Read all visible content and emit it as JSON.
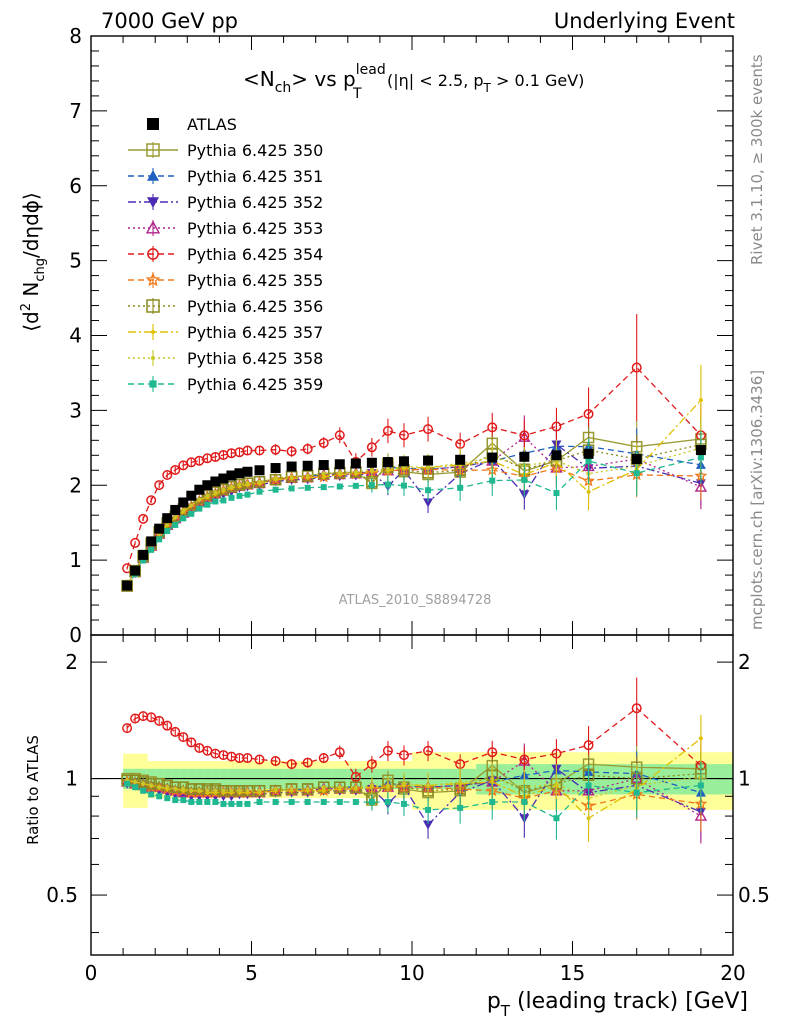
{
  "header": {
    "left": "7000 GeV pp",
    "right": "Underlying Event"
  },
  "title": {
    "main": "<N",
    "ch_sub": "ch",
    "vs": "> vs p",
    "lead_sup": "lead",
    "t_sub": "T",
    "cut": "(|η| < 2.5, p",
    "cut_t_sub": "T",
    "cut_end": " > 0.1 GeV)"
  },
  "ylabel_top": {
    "pre": "⟨d",
    "sup2": "2",
    "mid": " N",
    "sub": "chg",
    "post": "/dηdϕ⟩"
  },
  "ylabel_bottom": "Ratio to ATLAS",
  "xlabel": {
    "p": "p",
    "sub": "T",
    "rest": " (leading track) [GeV]"
  },
  "side_top": "Rivet 3.1.10, ≥ 300k events",
  "side_bottom": "mcplots.cern.ch [arXiv:1306.3436]",
  "watermark": "ATLAS_2010_S8894728",
  "legend": [
    {
      "name": "ATLAS",
      "color": "#000000",
      "marker": "square-filled",
      "dash": "none"
    },
    {
      "name": "Pythia 6.425 350",
      "color": "#9a9a32",
      "marker": "square-open",
      "dash": "solid"
    },
    {
      "name": "Pythia 6.425 351",
      "color": "#1f5fbf",
      "marker": "triangle-up-filled",
      "dash": "dashed"
    },
    {
      "name": "Pythia 6.425 352",
      "color": "#4b2bb3",
      "marker": "triangle-down-filled",
      "dash": "dashdot"
    },
    {
      "name": "Pythia 6.425 353",
      "color": "#b0238a",
      "marker": "triangle-up-open",
      "dash": "dotted"
    },
    {
      "name": "Pythia 6.425 354",
      "color": "#e01a1a",
      "marker": "circle-open",
      "dash": "dashed"
    },
    {
      "name": "Pythia 6.425 355",
      "color": "#f07818",
      "marker": "star-open",
      "dash": "dashed"
    },
    {
      "name": "Pythia 6.425 356",
      "color": "#8a8a20",
      "marker": "square-open",
      "dash": "dotted"
    },
    {
      "name": "Pythia 6.425 357",
      "color": "#e0c000",
      "marker": "dot",
      "dash": "dashdot"
    },
    {
      "name": "Pythia 6.425 358",
      "color": "#c8c828",
      "marker": "dot",
      "dash": "dotted"
    },
    {
      "name": "Pythia 6.425 359",
      "color": "#20b890",
      "marker": "square-filled-small",
      "dash": "dashed"
    }
  ],
  "chart_data": {
    "type": "scatter",
    "xlim": [
      0,
      20
    ],
    "ylim": [
      0,
      8
    ],
    "ratio_ylim": [
      0.35,
      2.35
    ],
    "xticks": [
      0,
      5,
      10,
      15,
      20
    ],
    "yticks": [
      0,
      1,
      2,
      3,
      4,
      5,
      6,
      7,
      8
    ],
    "ratio_yticks": [
      0.5,
      1,
      2
    ],
    "x": [
      1.125,
      1.375,
      1.625,
      1.875,
      2.125,
      2.375,
      2.625,
      2.875,
      3.125,
      3.375,
      3.625,
      3.875,
      4.125,
      4.375,
      4.625,
      4.875,
      5.25,
      5.75,
      6.25,
      6.75,
      7.25,
      7.75,
      8.25,
      8.75,
      9.25,
      9.75,
      10.5,
      11.5,
      12.5,
      13.5,
      14.5,
      15.5,
      17.0,
      19.0
    ],
    "atlas": [
      0.66,
      0.86,
      1.07,
      1.25,
      1.42,
      1.56,
      1.67,
      1.77,
      1.86,
      1.94,
      2.0,
      2.05,
      2.09,
      2.13,
      2.16,
      2.18,
      2.2,
      2.23,
      2.25,
      2.26,
      2.27,
      2.28,
      2.29,
      2.3,
      2.31,
      2.32,
      2.33,
      2.34,
      2.37,
      2.38,
      2.4,
      2.42,
      2.35,
      2.47
    ],
    "series": [
      {
        "name": "Pythia 6.425 350",
        "ratio": [
          1.0,
          1.0,
          0.99,
          0.98,
          0.97,
          0.96,
          0.95,
          0.95,
          0.94,
          0.94,
          0.93,
          0.93,
          0.93,
          0.93,
          0.93,
          0.93,
          0.93,
          0.93,
          0.94,
          0.94,
          0.95,
          0.95,
          0.95,
          0.88,
          0.99,
          0.94,
          0.92,
          0.93,
          1.08,
          0.92,
          0.97,
          1.09,
          1.07,
          1.06
        ]
      },
      {
        "name": "Pythia 6.425 351",
        "ratio": [
          0.98,
          0.98,
          0.97,
          0.96,
          0.95,
          0.94,
          0.93,
          0.93,
          0.92,
          0.92,
          0.92,
          0.92,
          0.92,
          0.92,
          0.92,
          0.93,
          0.93,
          0.93,
          0.93,
          0.94,
          0.94,
          0.95,
          0.95,
          0.94,
          0.97,
          0.96,
          0.95,
          0.96,
          0.98,
          1.02,
          1.05,
          1.04,
          1.03,
          0.92
        ]
      },
      {
        "name": "Pythia 6.425 352",
        "ratio": [
          0.97,
          0.96,
          0.95,
          0.94,
          0.93,
          0.92,
          0.91,
          0.9,
          0.9,
          0.9,
          0.9,
          0.9,
          0.9,
          0.9,
          0.91,
          0.91,
          0.91,
          0.92,
          0.92,
          0.92,
          0.93,
          0.93,
          0.93,
          0.94,
          0.86,
          0.95,
          0.76,
          0.92,
          0.99,
          0.79,
          1.06,
          0.92,
          0.96,
          0.82
        ]
      },
      {
        "name": "Pythia 6.425 353",
        "ratio": [
          0.98,
          0.97,
          0.96,
          0.95,
          0.95,
          0.94,
          0.93,
          0.92,
          0.92,
          0.92,
          0.92,
          0.92,
          0.92,
          0.92,
          0.92,
          0.92,
          0.92,
          0.93,
          0.93,
          0.93,
          0.94,
          0.94,
          0.94,
          0.95,
          0.95,
          0.95,
          0.95,
          0.96,
          0.98,
          1.11,
          0.93,
          0.93,
          1.0,
          0.8
        ]
      },
      {
        "name": "Pythia 6.425 354",
        "ratio": [
          1.35,
          1.43,
          1.45,
          1.44,
          1.41,
          1.37,
          1.32,
          1.28,
          1.24,
          1.2,
          1.18,
          1.16,
          1.15,
          1.14,
          1.13,
          1.13,
          1.12,
          1.11,
          1.09,
          1.1,
          1.13,
          1.17,
          1.01,
          1.09,
          1.18,
          1.15,
          1.18,
          1.09,
          1.17,
          1.12,
          1.16,
          1.22,
          1.52,
          1.08
        ]
      },
      {
        "name": "Pythia 6.425 355",
        "ratio": [
          0.98,
          0.97,
          0.96,
          0.95,
          0.95,
          0.94,
          0.93,
          0.93,
          0.92,
          0.92,
          0.92,
          0.92,
          0.92,
          0.92,
          0.92,
          0.92,
          0.92,
          0.93,
          0.93,
          0.93,
          0.93,
          0.94,
          0.94,
          0.94,
          0.95,
          0.95,
          0.95,
          0.94,
          0.93,
          0.89,
          0.93,
          0.85,
          0.91,
          0.86
        ]
      },
      {
        "name": "Pythia 6.425 356",
        "ratio": [
          0.99,
          0.99,
          0.98,
          0.97,
          0.97,
          0.96,
          0.95,
          0.95,
          0.94,
          0.94,
          0.94,
          0.94,
          0.93,
          0.93,
          0.93,
          0.93,
          0.93,
          0.93,
          0.94,
          0.94,
          0.95,
          0.95,
          0.95,
          0.89,
          0.97,
          0.95,
          0.93,
          0.94,
          1.02,
          0.93,
          0.97,
          1.02,
          1.0,
          1.03
        ]
      },
      {
        "name": "Pythia 6.425 357",
        "ratio": [
          0.99,
          0.98,
          0.97,
          0.96,
          0.95,
          0.94,
          0.94,
          0.93,
          0.93,
          0.93,
          0.92,
          0.92,
          0.92,
          0.92,
          0.92,
          0.92,
          0.92,
          0.93,
          0.93,
          0.93,
          0.93,
          0.94,
          0.94,
          0.95,
          0.95,
          0.96,
          0.96,
          0.97,
          0.98,
          0.9,
          0.96,
          0.79,
          0.94,
          1.27
        ]
      },
      {
        "name": "Pythia 6.425 358",
        "ratio": [
          0.99,
          0.98,
          0.97,
          0.96,
          0.95,
          0.95,
          0.94,
          0.94,
          0.93,
          0.93,
          0.93,
          0.93,
          0.93,
          0.93,
          0.93,
          0.93,
          0.93,
          0.94,
          0.94,
          0.94,
          0.95,
          0.95,
          0.95,
          0.96,
          0.96,
          0.97,
          0.96,
          0.98,
          1.0,
          0.95,
          0.97,
          0.89,
          0.96,
          1.01
        ]
      },
      {
        "name": "Pythia 6.425 359",
        "ratio": [
          0.97,
          0.95,
          0.93,
          0.91,
          0.9,
          0.89,
          0.88,
          0.88,
          0.87,
          0.87,
          0.87,
          0.87,
          0.86,
          0.86,
          0.86,
          0.86,
          0.87,
          0.87,
          0.87,
          0.87,
          0.87,
          0.87,
          0.87,
          0.87,
          0.87,
          0.86,
          0.83,
          0.84,
          0.87,
          0.87,
          0.79,
          0.96,
          0.92,
          0.96
        ]
      }
    ],
    "errors": {
      "354": [
        0.02,
        0.02,
        0.02,
        0.02,
        0.02,
        0.02,
        0.02,
        0.02,
        0.02,
        0.02,
        0.02,
        0.02,
        0.02,
        0.02,
        0.02,
        0.02,
        0.02,
        0.03,
        0.03,
        0.03,
        0.03,
        0.04,
        0.05,
        0.05,
        0.06,
        0.06,
        0.06,
        0.06,
        0.07,
        0.08,
        0.09,
        0.12,
        0.2,
        0.16
      ]
    },
    "band_green": 0.06,
    "band_yellow": 0.11
  }
}
